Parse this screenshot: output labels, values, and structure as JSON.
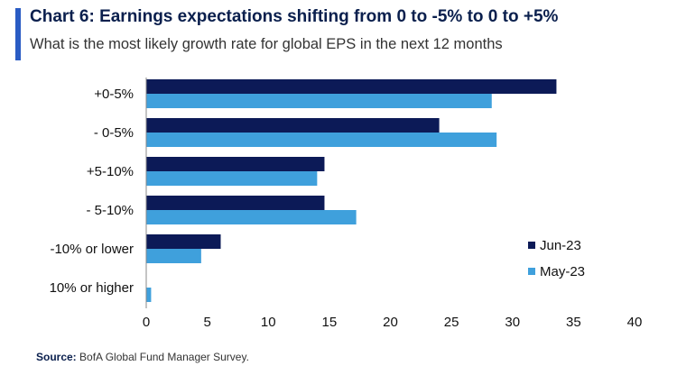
{
  "header": {
    "title": "Chart 6: Earnings expectations shifting from 0 to -5% to 0 to +5%",
    "subtitle": "What is the most likely growth rate for global EPS in the next 12 months"
  },
  "footer": {
    "source_label": "Source:",
    "source_text": "BofA Global Fund Manager Survey."
  },
  "colors": {
    "jun": "#0c1a57",
    "may": "#3fa0dc",
    "accent": "#2a5cc4"
  },
  "chart_data": {
    "type": "bar",
    "orientation": "horizontal",
    "title": "Chart 6: Earnings expectations shifting from 0 to -5% to 0 to +5%",
    "subtitle": "What is the most likely growth rate for global EPS in the next 12 months",
    "categories": [
      "+0-5%",
      "- 0-5%",
      "+5-10%",
      "- 5-10%",
      "-10% or lower",
      "10% or higher"
    ],
    "series": [
      {
        "name": "Jun-23",
        "values": [
          33.6,
          24.0,
          14.6,
          14.6,
          6.1,
          0.0
        ]
      },
      {
        "name": "May-23",
        "values": [
          28.3,
          28.7,
          14.0,
          17.2,
          4.5,
          0.4
        ]
      }
    ],
    "xlim": [
      0,
      40
    ],
    "xticks": [
      0,
      5,
      10,
      15,
      20,
      25,
      30,
      35,
      40
    ],
    "xlabel": "",
    "ylabel": "",
    "grid": false,
    "legend_position": "right"
  }
}
